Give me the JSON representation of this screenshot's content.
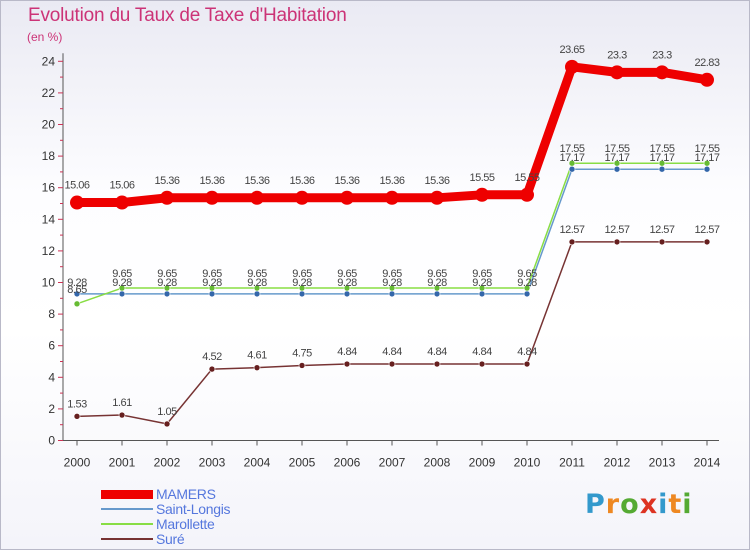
{
  "title": "Evolution du Taux de Taxe d'Habitation",
  "subtitle": "(en %)",
  "brand": {
    "letters": [
      "P",
      "r",
      "o",
      "x",
      "i",
      "t",
      "i"
    ],
    "colors": [
      "#3399cc",
      "#ee8822",
      "#55aa33",
      "#dd3322",
      "#3399cc",
      "#ee8822",
      "#55aa33"
    ]
  },
  "chart_data": {
    "type": "line",
    "categories": [
      "2000",
      "2001",
      "2002",
      "2003",
      "2004",
      "2005",
      "2006",
      "2007",
      "2008",
      "2009",
      "2010",
      "2011",
      "2012",
      "2013",
      "2014"
    ],
    "y_ticks": [
      "0",
      "2",
      "4",
      "6",
      "8",
      "10",
      "12",
      "14",
      "16",
      "18",
      "20",
      "22",
      "24"
    ],
    "ylim": [
      0,
      24
    ],
    "grid": false,
    "legend_position": "bottom-left",
    "series": [
      {
        "name": "MAMERS",
        "color": "#ee0000",
        "line_width": 9,
        "marker_radius": 7,
        "values": [
          15.06,
          15.06,
          15.36,
          15.36,
          15.36,
          15.36,
          15.36,
          15.36,
          15.36,
          15.55,
          15.55,
          23.65,
          23.3,
          23.3,
          22.83
        ],
        "labels": [
          "15.06",
          "15.06",
          "15.36",
          "15.36",
          "15.36",
          "15.36",
          "15.36",
          "15.36",
          "15.36",
          "15.55",
          "15.55",
          "23.65",
          "23.3",
          "23.3",
          "22.83"
        ]
      },
      {
        "name": "Saint-Longis",
        "color": "#6699cc",
        "marker_fill": "#3366aa",
        "line_width": 1.5,
        "marker_radius": 3,
        "values": [
          9.28,
          9.28,
          9.28,
          9.28,
          9.28,
          9.28,
          9.28,
          9.28,
          9.28,
          9.28,
          9.28,
          17.17,
          17.17,
          17.17,
          17.17
        ],
        "labels": [
          "9.28",
          "9.28",
          "9.28",
          "9.28",
          "9.28",
          "9.28",
          "9.28",
          "9.28",
          "9.28",
          "9.28",
          "9.28",
          "17.17",
          "17.17",
          "17.17",
          "17.17"
        ]
      },
      {
        "name": "Marollette",
        "color": "#88dd44",
        "marker_fill": "#66bb33",
        "line_width": 1.5,
        "marker_radius": 3,
        "values": [
          8.65,
          9.65,
          9.65,
          9.65,
          9.65,
          9.65,
          9.65,
          9.65,
          9.65,
          9.65,
          9.65,
          17.55,
          17.55,
          17.55,
          17.55
        ],
        "labels": [
          "8.65",
          "9.65",
          "9.65",
          "9.65",
          "9.65",
          "9.65",
          "9.65",
          "9.65",
          "9.65",
          "9.65",
          "9.65",
          "17.55",
          "17.55",
          "17.55",
          "17.55"
        ]
      },
      {
        "name": "Suré",
        "color": "#773333",
        "marker_fill": "#661f1f",
        "line_width": 1.5,
        "marker_radius": 3,
        "values": [
          1.53,
          1.61,
          1.05,
          4.52,
          4.61,
          4.75,
          4.84,
          4.84,
          4.84,
          4.84,
          4.84,
          12.57,
          12.57,
          12.57,
          12.57
        ],
        "labels": [
          "1.53",
          "1.61",
          "1.05",
          "4.52",
          "4.61",
          "4.75",
          "4.84",
          "4.84",
          "4.84",
          "4.84",
          "4.84",
          "12.57",
          "12.57",
          "12.57",
          "12.57"
        ]
      }
    ]
  }
}
